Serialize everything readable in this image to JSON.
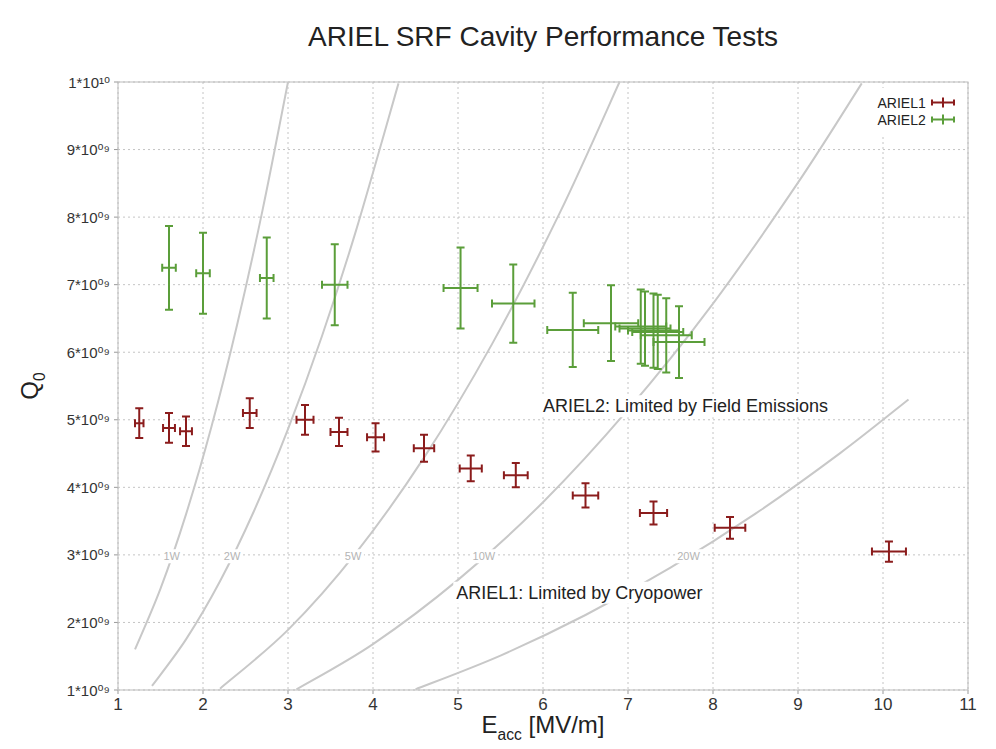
{
  "chart_data": {
    "type": "scatter",
    "title": "ARIEL SRF Cavity Performance Tests",
    "x_label": "Eacc [MV/m]",
    "y_label": "Q0",
    "xlim": [
      1,
      11
    ],
    "xticks": [
      1,
      2,
      3,
      4,
      5,
      6,
      7,
      8,
      9,
      10,
      11
    ],
    "ylim": [
      1000000000,
      10000000000
    ],
    "yticks": [
      {
        "value": 1000000000,
        "label": "1*10⁰⁹"
      },
      {
        "value": 2000000000,
        "label": "2*10⁰⁹"
      },
      {
        "value": 3000000000,
        "label": "3*10⁰⁹"
      },
      {
        "value": 4000000000,
        "label": "4*10⁰⁹"
      },
      {
        "value": 5000000000,
        "label": "5*10⁰⁹"
      },
      {
        "value": 6000000000,
        "label": "6*10⁰⁹"
      },
      {
        "value": 7000000000,
        "label": "7*10⁰⁹"
      },
      {
        "value": 8000000000,
        "label": "8*10⁰⁹"
      },
      {
        "value": 9000000000,
        "label": "9*10⁰⁹"
      },
      {
        "value": 10000000000,
        "label": "1*10¹⁰"
      }
    ],
    "grid": true,
    "legend": "top-right",
    "series": [
      {
        "name": "ARIEL1",
        "color": "#8b1c1c",
        "marker": "errorbar",
        "x": [
          1.25,
          1.6,
          1.8,
          2.55,
          3.2,
          3.6,
          4.03,
          4.6,
          5.15,
          5.68,
          6.5,
          7.3,
          8.2,
          10.07
        ],
        "values": [
          4950000000,
          4880000000,
          4830000000,
          5100000000,
          5000000000,
          4820000000,
          4740000000,
          4580000000,
          4280000000,
          4180000000,
          3880000000,
          3620000000,
          3400000000,
          3050000000
        ],
        "x_errors": [
          0.05,
          0.07,
          0.07,
          0.08,
          0.1,
          0.1,
          0.1,
          0.12,
          0.13,
          0.14,
          0.15,
          0.16,
          0.18,
          0.2
        ],
        "errors": [
          220000000,
          220000000,
          220000000,
          220000000,
          220000000,
          210000000,
          210000000,
          200000000,
          190000000,
          180000000,
          180000000,
          170000000,
          160000000,
          150000000
        ]
      },
      {
        "name": "ARIEL2",
        "color": "#5b9e3a",
        "marker": "errorbar",
        "x": [
          1.6,
          2.0,
          2.75,
          3.55,
          5.03,
          5.65,
          6.35,
          6.8,
          7.15,
          7.2,
          7.3,
          7.35,
          7.45,
          7.6
        ],
        "values": [
          7250000000,
          7170000000,
          7100000000,
          7000000000,
          6950000000,
          6720000000,
          6330000000,
          6430000000,
          6380000000,
          6350000000,
          6320000000,
          6300000000,
          6250000000,
          6150000000
        ],
        "x_errors": [
          0.08,
          0.08,
          0.08,
          0.15,
          0.2,
          0.25,
          0.3,
          0.32,
          0.3,
          0.3,
          0.3,
          0.3,
          0.3,
          0.3
        ],
        "errors": [
          620000000,
          600000000,
          600000000,
          600000000,
          600000000,
          580000000,
          550000000,
          560000000,
          550000000,
          550000000,
          550000000,
          550000000,
          550000000,
          530000000
        ]
      }
    ],
    "power_lines": [
      {
        "label": "1W",
        "color": "#c8c8c8",
        "x": [
          1.2,
          1.5,
          1.8,
          2.1,
          2.4,
          2.7,
          3.0
        ],
        "values": [
          1600000000,
          2500000000,
          3600000000,
          4900000000,
          6400000000,
          8100000000,
          10000000000
        ]
      },
      {
        "label": "2W",
        "color": "#c8c8c8",
        "x": [
          1.4,
          1.8,
          2.2,
          2.6,
          3.0,
          3.4,
          3.8,
          4.3
        ],
        "values": [
          1060000000,
          1750000000,
          2610000000,
          3650000000,
          4860000000,
          6240000000,
          7800000000,
          9980000000
        ]
      },
      {
        "label": "5W",
        "color": "#c8c8c8",
        "x": [
          2.2,
          3.0,
          3.8,
          4.6,
          5.4,
          6.2,
          6.9
        ],
        "values": [
          1020000000,
          1890000000,
          3030000000,
          4440000000,
          6120000000,
          8070000000,
          10000000000
        ]
      },
      {
        "label": "10W",
        "color": "#c8c8c8",
        "x": [
          3.1,
          4.0,
          5.0,
          6.0,
          7.0,
          8.0,
          9.0,
          9.75
        ],
        "values": [
          1010000000,
          1680000000,
          2630000000,
          3780000000,
          5150000000,
          6720000000,
          8510000000,
          9980000000
        ]
      },
      {
        "label": "20W",
        "color": "#c8c8c8",
        "x": [
          4.5,
          5.5,
          6.5,
          7.5,
          8.5,
          9.5,
          10.3
        ],
        "values": [
          1010000000,
          1510000000,
          2110000000,
          2810000000,
          3610000000,
          4510000000,
          5300000000
        ]
      }
    ],
    "annotations": [
      {
        "text": "ARIEL2: Limited by Field Emissions",
        "x": 6.0,
        "y": 5200000000
      },
      {
        "text": "ARIEL1: Limited by Cryopower",
        "x": 4.98,
        "y": 2440000000
      }
    ]
  }
}
